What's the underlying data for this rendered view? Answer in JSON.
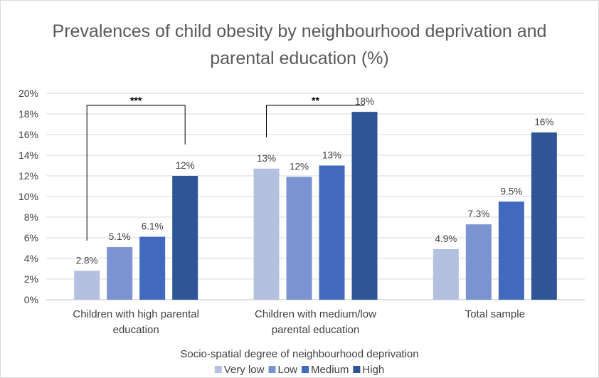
{
  "chart_data": {
    "type": "bar",
    "title_lines": [
      "Prevalences of child obesity by neighbourhood deprivation and",
      "parental education (%)"
    ],
    "xlabel": "Socio-spatial degree of neighbourhood deprivation",
    "ylim": [
      0,
      20
    ],
    "y_ticks": [
      "0%",
      "2%",
      "4%",
      "6%",
      "8%",
      "10%",
      "12%",
      "14%",
      "16%",
      "18%",
      "20%"
    ],
    "grid": true,
    "legend_position": "bottom",
    "categories": [
      {
        "lines": [
          "Children with high parental",
          "education"
        ]
      },
      {
        "lines": [
          "Children with medium/low",
          "parental education"
        ]
      },
      {
        "lines": [
          "Total sample"
        ]
      }
    ],
    "series": [
      {
        "name": "Very low",
        "color": "#b4c0e0",
        "values": [
          2.8,
          12.7,
          4.9
        ],
        "labels": [
          "2.8%",
          "13%",
          "4.9%"
        ]
      },
      {
        "name": "Low",
        "color": "#7b93d1",
        "values": [
          5.1,
          11.9,
          7.3
        ],
        "labels": [
          "5.1%",
          "12%",
          "7.3%"
        ]
      },
      {
        "name": "Medium",
        "color": "#4169be",
        "values": [
          6.1,
          13.0,
          9.5
        ],
        "labels": [
          "6.1%",
          "13%",
          "9.5%"
        ]
      },
      {
        "name": "High",
        "color": "#2f5597",
        "values": [
          12.0,
          18.2,
          16.2
        ],
        "labels": [
          "12%",
          "18%",
          "16%"
        ]
      }
    ],
    "significance": [
      {
        "category": 0,
        "from_series": 0,
        "to_series": 3,
        "label": "***"
      },
      {
        "category": 1,
        "from_series": 0,
        "to_series": 3,
        "label": "**"
      }
    ]
  }
}
